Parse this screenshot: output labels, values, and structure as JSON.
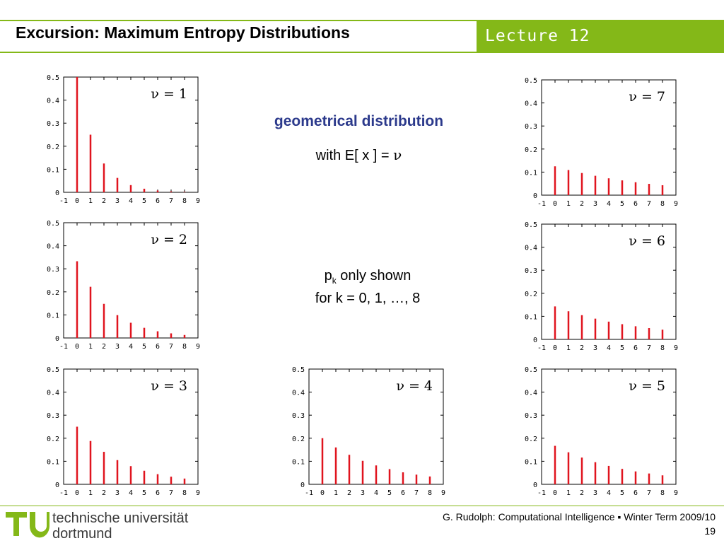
{
  "header": {
    "title": "Excursion: Maximum Entropy Distributions",
    "lecture": "Lecture 12",
    "accent_color": "#84b818"
  },
  "center": {
    "heading": "geometrical distribution",
    "subheading": "with E[ x ] = ",
    "nu_symbol": "ν",
    "note_p": "p",
    "note_k": "k",
    "note_line1": " only shown",
    "note_line2": "for k = 0, 1, …, 8"
  },
  "footer": {
    "university_line1": "technische universität",
    "university_line2": "dortmund",
    "credit": "G. Rudolph: Computational Intelligence ▪ Winter Term 2009/10",
    "page": "19"
  },
  "chart_data": [
    {
      "id": "nu1",
      "type": "bar",
      "label": "ν = 1",
      "x": [
        0,
        1,
        2,
        3,
        4,
        5,
        6,
        7,
        8
      ],
      "values": [
        0.5,
        0.25,
        0.125,
        0.0625,
        0.0313,
        0.0156,
        0.0078,
        0.0039,
        0.002
      ],
      "xticks": [
        "-1",
        "0",
        "1",
        "2",
        "3",
        "4",
        "5",
        "6",
        "7",
        "8",
        "9"
      ],
      "yticks": [
        "0",
        "0.1",
        "0.2",
        "0.3",
        "0.4",
        "0.5"
      ],
      "xlim": [
        -1,
        9
      ],
      "ylim": [
        0,
        0.5
      ],
      "color": "#e0141e"
    },
    {
      "id": "nu2",
      "type": "bar",
      "label": "ν = 2",
      "x": [
        0,
        1,
        2,
        3,
        4,
        5,
        6,
        7,
        8
      ],
      "values": [
        0.333,
        0.222,
        0.148,
        0.099,
        0.066,
        0.044,
        0.029,
        0.02,
        0.013
      ],
      "xticks": [
        "-1",
        "0",
        "1",
        "2",
        "3",
        "4",
        "5",
        "6",
        "7",
        "8",
        "9"
      ],
      "yticks": [
        "0",
        "0.1",
        "0.2",
        "0.3",
        "0.4",
        "0.5"
      ],
      "xlim": [
        -1,
        9
      ],
      "ylim": [
        0,
        0.5
      ],
      "color": "#e0141e"
    },
    {
      "id": "nu3",
      "type": "bar",
      "label": "ν = 3",
      "x": [
        0,
        1,
        2,
        3,
        4,
        5,
        6,
        7,
        8
      ],
      "values": [
        0.25,
        0.188,
        0.141,
        0.105,
        0.079,
        0.059,
        0.044,
        0.033,
        0.025
      ],
      "xticks": [
        "-1",
        "0",
        "1",
        "2",
        "3",
        "4",
        "5",
        "6",
        "7",
        "8",
        "9"
      ],
      "yticks": [
        "0",
        "0.1",
        "0.2",
        "0.3",
        "0.4",
        "0.5"
      ],
      "xlim": [
        -1,
        9
      ],
      "ylim": [
        0,
        0.5
      ],
      "color": "#e0141e"
    },
    {
      "id": "nu4",
      "type": "bar",
      "label": "ν = 4",
      "x": [
        0,
        1,
        2,
        3,
        4,
        5,
        6,
        7,
        8
      ],
      "values": [
        0.2,
        0.16,
        0.128,
        0.102,
        0.082,
        0.066,
        0.052,
        0.042,
        0.034
      ],
      "xticks": [
        "-1",
        "0",
        "1",
        "2",
        "3",
        "4",
        "5",
        "6",
        "7",
        "8",
        "9"
      ],
      "yticks": [
        "0",
        "0.1",
        "0.2",
        "0.3",
        "0.4",
        "0.5"
      ],
      "xlim": [
        -1,
        9
      ],
      "ylim": [
        0,
        0.5
      ],
      "color": "#e0141e"
    },
    {
      "id": "nu5",
      "type": "bar",
      "label": "ν = 5",
      "x": [
        0,
        1,
        2,
        3,
        4,
        5,
        6,
        7,
        8
      ],
      "values": [
        0.167,
        0.139,
        0.116,
        0.096,
        0.08,
        0.067,
        0.056,
        0.047,
        0.039
      ],
      "xticks": [
        "-1",
        "0",
        "1",
        "2",
        "3",
        "4",
        "5",
        "6",
        "7",
        "8",
        "9"
      ],
      "yticks": [
        "0",
        "0.1",
        "0.2",
        "0.3",
        "0.4",
        "0.5"
      ],
      "xlim": [
        -1,
        9
      ],
      "ylim": [
        0,
        0.5
      ],
      "color": "#e0141e"
    },
    {
      "id": "nu6",
      "type": "bar",
      "label": "ν = 6",
      "x": [
        0,
        1,
        2,
        3,
        4,
        5,
        6,
        7,
        8
      ],
      "values": [
        0.143,
        0.122,
        0.105,
        0.09,
        0.077,
        0.066,
        0.057,
        0.049,
        0.042
      ],
      "xticks": [
        "-1",
        "0",
        "1",
        "2",
        "3",
        "4",
        "5",
        "6",
        "7",
        "8",
        "9"
      ],
      "yticks": [
        "0",
        "0.1",
        "0.2",
        "0.3",
        "0.4",
        "0.5"
      ],
      "xlim": [
        -1,
        9
      ],
      "ylim": [
        0,
        0.5
      ],
      "color": "#e0141e"
    },
    {
      "id": "nu7",
      "type": "bar",
      "label": "ν = 7",
      "x": [
        0,
        1,
        2,
        3,
        4,
        5,
        6,
        7,
        8
      ],
      "values": [
        0.125,
        0.109,
        0.096,
        0.084,
        0.073,
        0.064,
        0.056,
        0.049,
        0.043
      ],
      "xticks": [
        "-1",
        "0",
        "1",
        "2",
        "3",
        "4",
        "5",
        "6",
        "7",
        "8",
        "9"
      ],
      "yticks": [
        "0",
        "0.1",
        "0.2",
        "0.3",
        "0.4",
        "0.5"
      ],
      "xlim": [
        -1,
        9
      ],
      "ylim": [
        0,
        0.5
      ],
      "color": "#e0141e"
    }
  ]
}
